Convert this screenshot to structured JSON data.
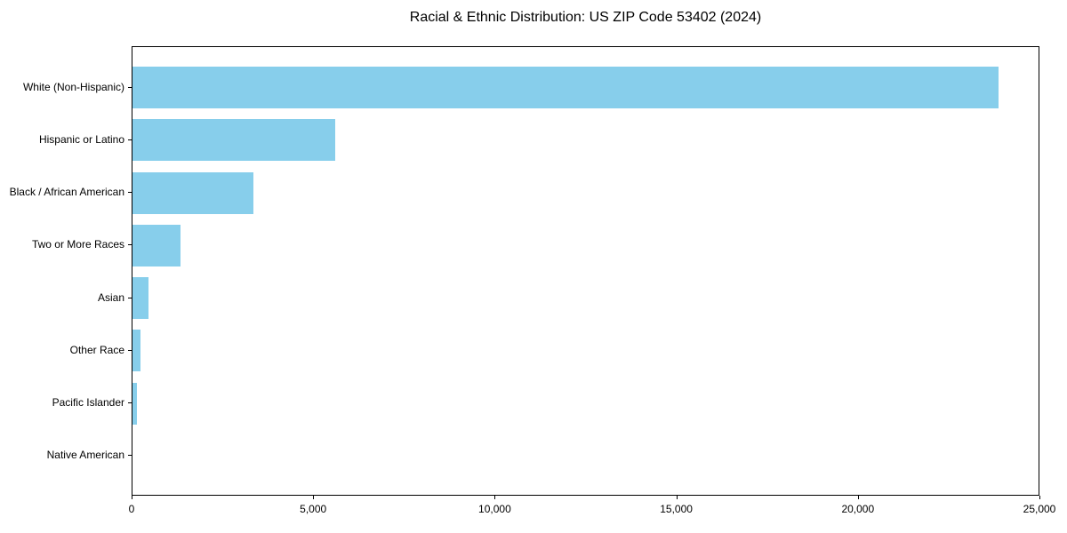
{
  "chart_data": {
    "type": "bar",
    "orientation": "horizontal",
    "title": "Racial & Ethnic Distribution: US ZIP Code 53402 (2024)",
    "categories": [
      "White (Non-Hispanic)",
      "Hispanic or Latino",
      "Black / African American",
      "Two or More Races",
      "Asian",
      "Other Race",
      "Pacific Islander",
      "Native American"
    ],
    "values": [
      23850,
      5580,
      3320,
      1330,
      430,
      210,
      130,
      0
    ],
    "xlabel": "",
    "ylabel": "",
    "xlim": [
      0,
      25000
    ],
    "x_ticks": [
      0,
      5000,
      10000,
      15000,
      20000,
      25000
    ],
    "x_tick_labels": [
      "0",
      "5,000",
      "10,000",
      "15,000",
      "20,000",
      "25,000"
    ],
    "bar_color": "#87CEEB",
    "background_color": "#FFFFFF",
    "axis_color": "#000000",
    "grid": false,
    "legend": null
  }
}
